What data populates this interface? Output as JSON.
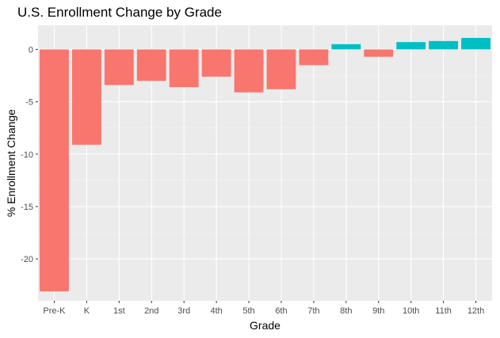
{
  "chart_data": {
    "type": "bar",
    "title": "U.S. Enrollment Change by Grade",
    "xlabel": "Grade",
    "ylabel": "% Enrollment Change",
    "categories": [
      "Pre-K",
      "K",
      "1st",
      "2nd",
      "3rd",
      "4th",
      "5th",
      "6th",
      "7th",
      "8th",
      "9th",
      "10th",
      "11th",
      "12th"
    ],
    "values": [
      -23.1,
      -9.1,
      -3.4,
      -3.0,
      -3.6,
      -2.6,
      -4.1,
      -3.8,
      -1.5,
      0.5,
      -0.7,
      0.7,
      0.8,
      1.1
    ],
    "ylim": [
      -24,
      2.3
    ],
    "yticks": [
      0,
      -5,
      -10,
      -15,
      -20
    ],
    "ytick_labels": [
      "0",
      "-5",
      "-10",
      "-15",
      "-20"
    ],
    "grid": true,
    "legend": "none",
    "colors": {
      "negative": "#F8766D",
      "positive": "#00BFC4",
      "panel": "#EBEBEB",
      "grid_major": "#FFFFFF",
      "grid_minor": "#F4F4F4"
    }
  }
}
